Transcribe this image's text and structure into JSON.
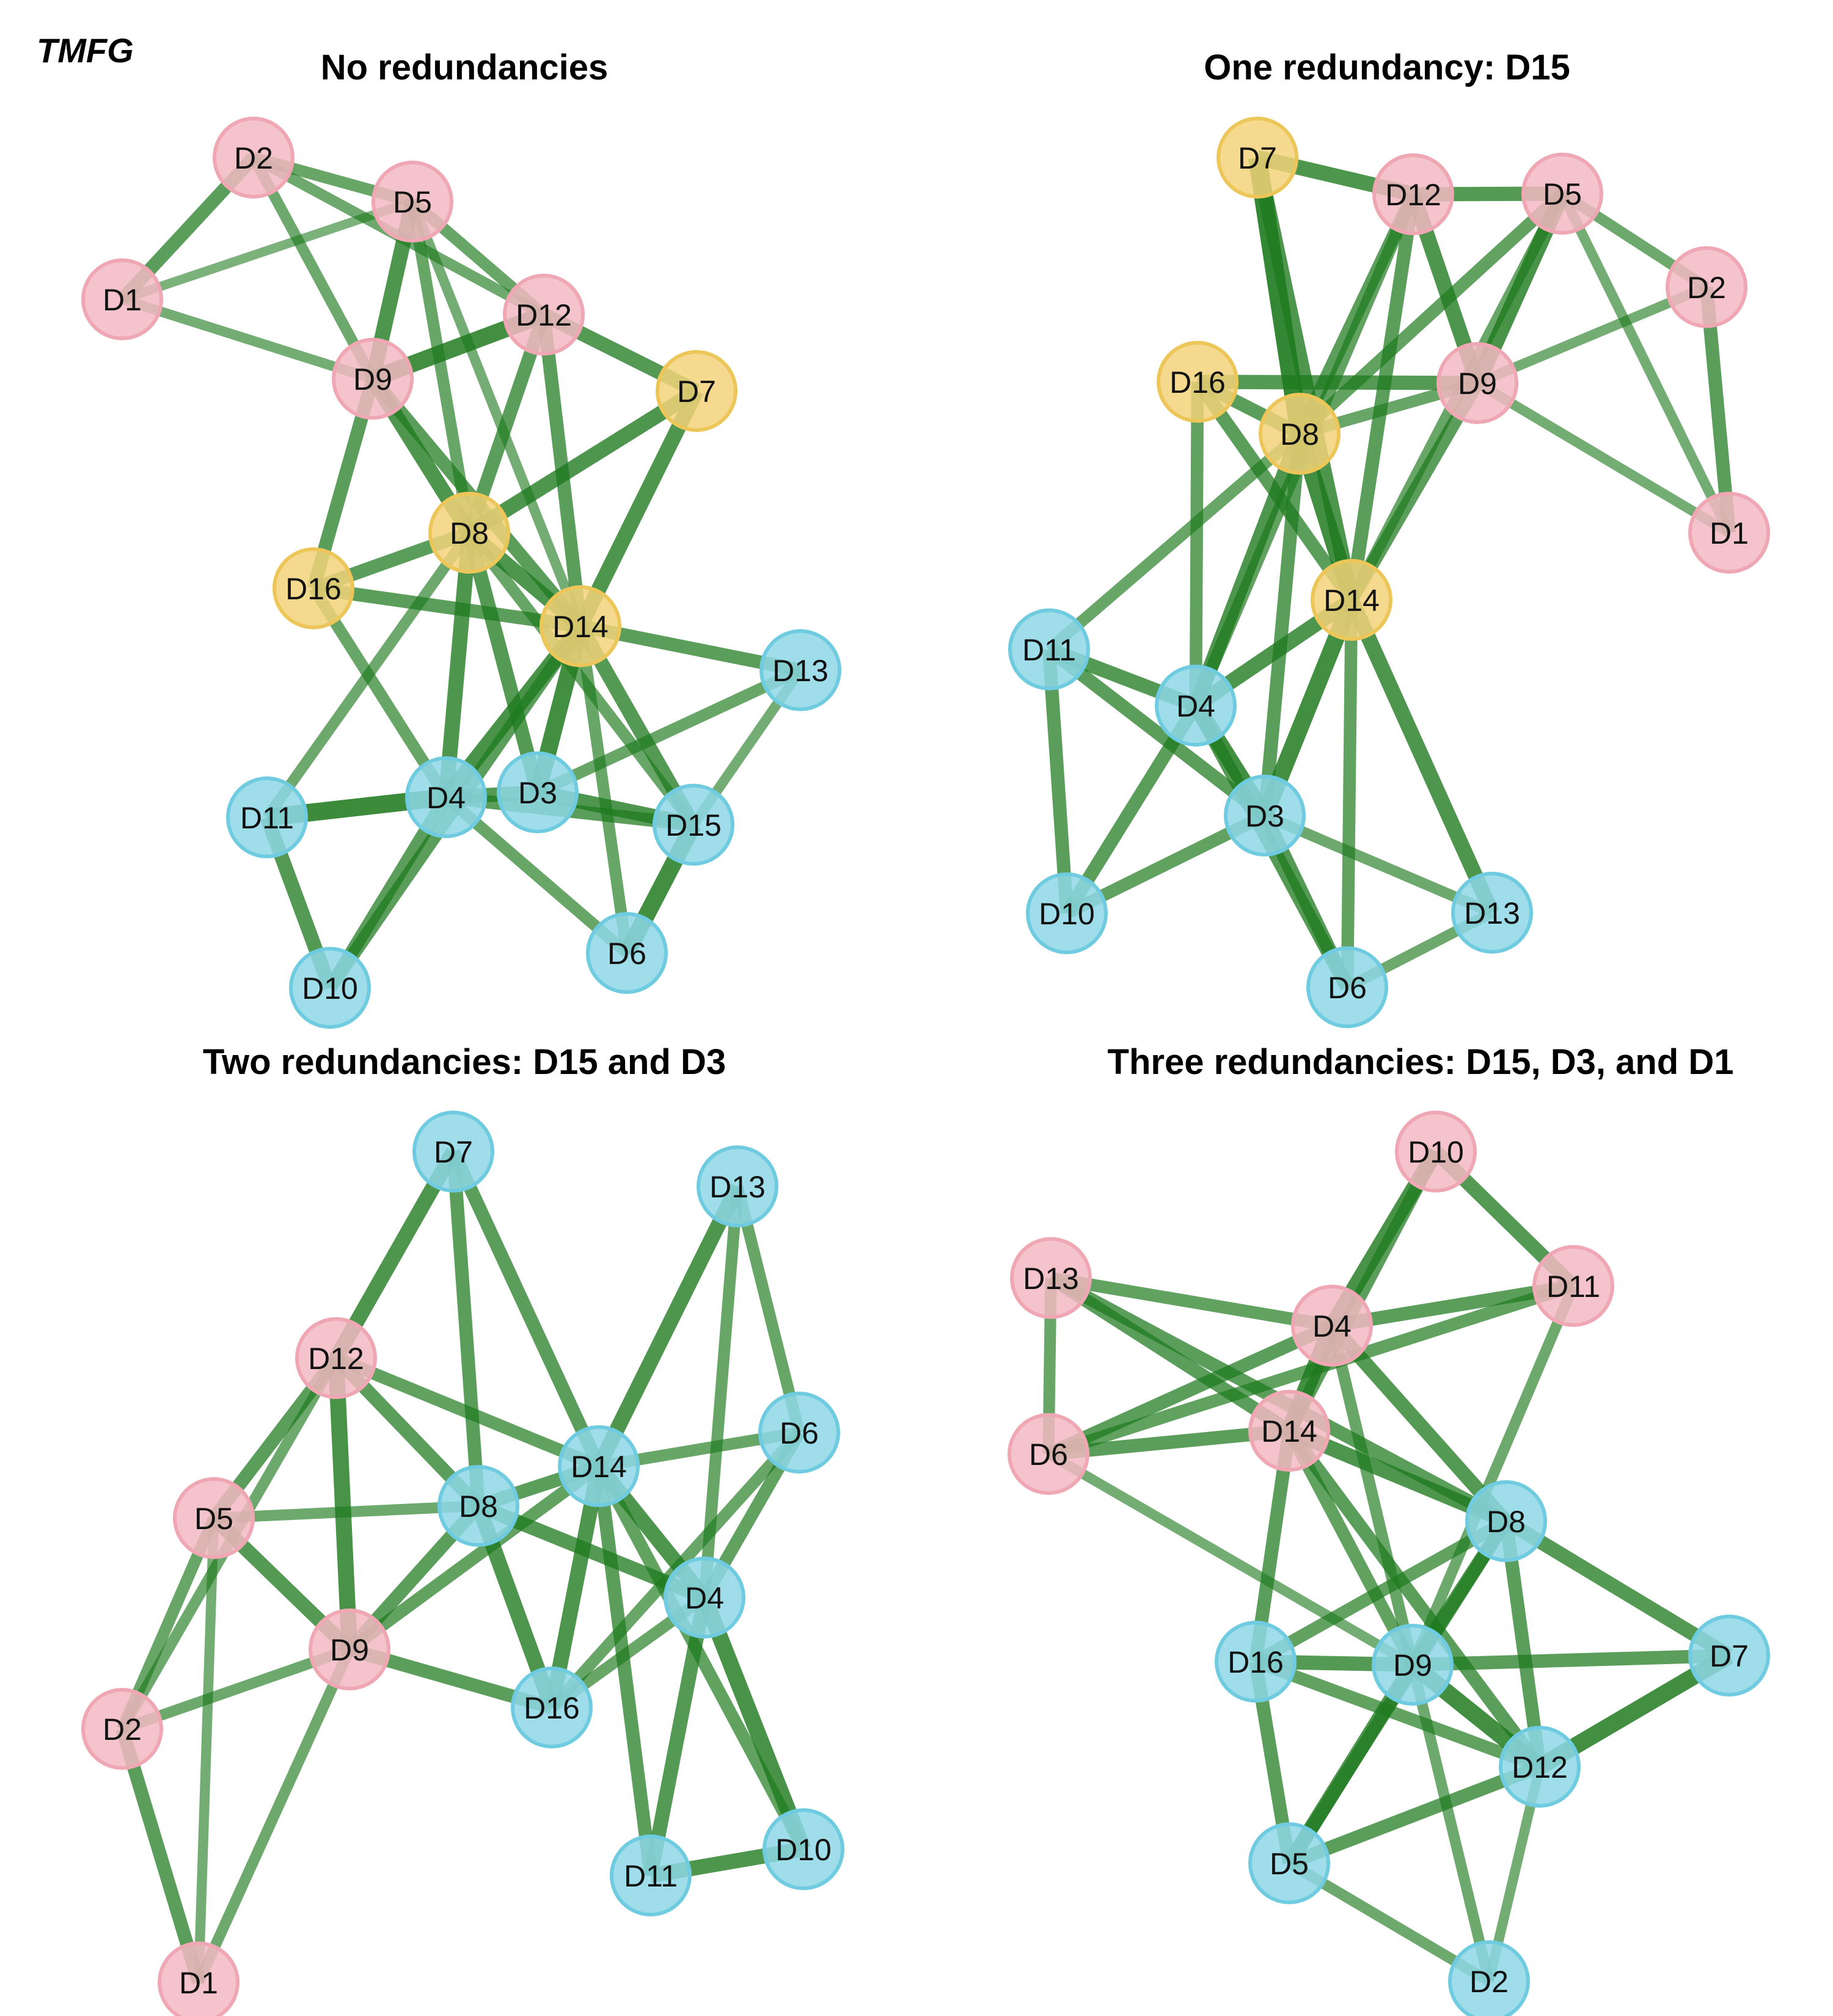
{
  "corner_label": "TMFG",
  "colors": {
    "pink": "#F2B8C2",
    "pink_border": "#EFA7B4",
    "yellow": "#F2D27A",
    "yellow_border": "#EDC65A",
    "cyan": "#8ED7E6",
    "cyan_border": "#6FCCE0",
    "edge": "#1E7A1E"
  },
  "panels": [
    {
      "title": "No redundancies",
      "nodes": [
        {
          "id": "D1",
          "color": "pink"
        },
        {
          "id": "D2",
          "color": "pink"
        },
        {
          "id": "D5",
          "color": "pink"
        },
        {
          "id": "D9",
          "color": "pink"
        },
        {
          "id": "D12",
          "color": "pink"
        },
        {
          "id": "D7",
          "color": "yellow"
        },
        {
          "id": "D8",
          "color": "yellow"
        },
        {
          "id": "D16",
          "color": "yellow"
        },
        {
          "id": "D14",
          "color": "yellow"
        },
        {
          "id": "D13",
          "color": "cyan"
        },
        {
          "id": "D11",
          "color": "cyan"
        },
        {
          "id": "D4",
          "color": "cyan"
        },
        {
          "id": "D3",
          "color": "cyan"
        },
        {
          "id": "D15",
          "color": "cyan"
        },
        {
          "id": "D10",
          "color": "cyan"
        },
        {
          "id": "D6",
          "color": "cyan"
        }
      ],
      "edges": [
        [
          "D2",
          "D1",
          1.0
        ],
        [
          "D2",
          "D5",
          0.8
        ],
        [
          "D2",
          "D12",
          0.7
        ],
        [
          "D2",
          "D9",
          0.7
        ],
        [
          "D1",
          "D5",
          0.5
        ],
        [
          "D1",
          "D9",
          0.6
        ],
        [
          "D5",
          "D12",
          0.8
        ],
        [
          "D5",
          "D9",
          1.2
        ],
        [
          "D5",
          "D8",
          0.8
        ],
        [
          "D5",
          "D14",
          0.6
        ],
        [
          "D9",
          "D12",
          1.4
        ],
        [
          "D9",
          "D16",
          1.0
        ],
        [
          "D9",
          "D8",
          1.2
        ],
        [
          "D9",
          "D14",
          1.0
        ],
        [
          "D12",
          "D7",
          1.1
        ],
        [
          "D12",
          "D8",
          1.0
        ],
        [
          "D12",
          "D14",
          1.0
        ],
        [
          "D7",
          "D8",
          1.2
        ],
        [
          "D7",
          "D14",
          1.2
        ],
        [
          "D8",
          "D16",
          1.0
        ],
        [
          "D8",
          "D14",
          1.2
        ],
        [
          "D8",
          "D4",
          1.2
        ],
        [
          "D8",
          "D3",
          1.1
        ],
        [
          "D8",
          "D11",
          0.7
        ],
        [
          "D8",
          "D15",
          0.8
        ],
        [
          "D16",
          "D14",
          1.0
        ],
        [
          "D16",
          "D4",
          0.8
        ],
        [
          "D14",
          "D13",
          1.0
        ],
        [
          "D14",
          "D4",
          1.3
        ],
        [
          "D14",
          "D3",
          1.4
        ],
        [
          "D14",
          "D15",
          1.1
        ],
        [
          "D14",
          "D6",
          0.8
        ],
        [
          "D14",
          "D10",
          1.0
        ],
        [
          "D11",
          "D4",
          1.5
        ],
        [
          "D11",
          "D10",
          1.1
        ],
        [
          "D4",
          "D3",
          1.1
        ],
        [
          "D4",
          "D10",
          1.0
        ],
        [
          "D4",
          "D6",
          0.8
        ],
        [
          "D3",
          "D13",
          0.8
        ],
        [
          "D3",
          "D15",
          1.2
        ],
        [
          "D15",
          "D13",
          0.6
        ],
        [
          "D15",
          "D6",
          1.4
        ],
        [
          "D4",
          "D15",
          1.0
        ]
      ]
    },
    {
      "title": "One redundancy: D15",
      "nodes": [
        {
          "id": "D7",
          "color": "yellow"
        },
        {
          "id": "D12",
          "color": "pink"
        },
        {
          "id": "D5",
          "color": "pink"
        },
        {
          "id": "D2",
          "color": "pink"
        },
        {
          "id": "D16",
          "color": "yellow"
        },
        {
          "id": "D9",
          "color": "pink"
        },
        {
          "id": "D8",
          "color": "yellow"
        },
        {
          "id": "D1",
          "color": "pink"
        },
        {
          "id": "D14",
          "color": "yellow"
        },
        {
          "id": "D11",
          "color": "cyan"
        },
        {
          "id": "D4",
          "color": "cyan"
        },
        {
          "id": "D3",
          "color": "cyan"
        },
        {
          "id": "D10",
          "color": "cyan"
        },
        {
          "id": "D13",
          "color": "cyan"
        },
        {
          "id": "D6",
          "color": "cyan"
        }
      ],
      "edges": [
        [
          "D7",
          "D12",
          1.2
        ],
        [
          "D7",
          "D8",
          1.6
        ],
        [
          "D7",
          "D14",
          1.2
        ],
        [
          "D12",
          "D5",
          1.1
        ],
        [
          "D12",
          "D9",
          1.2
        ],
        [
          "D12",
          "D8",
          1.0
        ],
        [
          "D12",
          "D14",
          1.0
        ],
        [
          "D12",
          "D4",
          0.9
        ],
        [
          "D5",
          "D9",
          1.3
        ],
        [
          "D5",
          "D2",
          0.7
        ],
        [
          "D5",
          "D1",
          0.6
        ],
        [
          "D5",
          "D8",
          0.9
        ],
        [
          "D5",
          "D14",
          0.8
        ],
        [
          "D2",
          "D9",
          0.6
        ],
        [
          "D2",
          "D1",
          1.0
        ],
        [
          "D9",
          "D1",
          0.6
        ],
        [
          "D9",
          "D16",
          1.1
        ],
        [
          "D9",
          "D8",
          0.8
        ],
        [
          "D9",
          "D14",
          1.0
        ],
        [
          "D16",
          "D8",
          1.0
        ],
        [
          "D16",
          "D4",
          0.9
        ],
        [
          "D16",
          "D14",
          1.0
        ],
        [
          "D8",
          "D14",
          1.4
        ],
        [
          "D8",
          "D11",
          0.8
        ],
        [
          "D8",
          "D4",
          1.2
        ],
        [
          "D8",
          "D3",
          1.0
        ],
        [
          "D14",
          "D4",
          1.2
        ],
        [
          "D14",
          "D3",
          1.4
        ],
        [
          "D14",
          "D13",
          1.2
        ],
        [
          "D14",
          "D6",
          0.9
        ],
        [
          "D11",
          "D4",
          1.1
        ],
        [
          "D11",
          "D3",
          1.0
        ],
        [
          "D11",
          "D10",
          1.0
        ],
        [
          "D4",
          "D3",
          1.4
        ],
        [
          "D4",
          "D10",
          1.0
        ],
        [
          "D4",
          "D6",
          1.1
        ],
        [
          "D3",
          "D10",
          0.9
        ],
        [
          "D3",
          "D13",
          0.7
        ],
        [
          "D3",
          "D6",
          1.1
        ],
        [
          "D6",
          "D13",
          0.7
        ]
      ]
    },
    {
      "title": "Two redundancies: D15 and D3",
      "nodes": [
        {
          "id": "D7",
          "color": "cyan"
        },
        {
          "id": "D13",
          "color": "cyan"
        },
        {
          "id": "D12",
          "color": "pink"
        },
        {
          "id": "D6",
          "color": "cyan"
        },
        {
          "id": "D14",
          "color": "cyan"
        },
        {
          "id": "D5",
          "color": "pink"
        },
        {
          "id": "D8",
          "color": "cyan"
        },
        {
          "id": "D4",
          "color": "cyan"
        },
        {
          "id": "D9",
          "color": "pink"
        },
        {
          "id": "D2",
          "color": "pink"
        },
        {
          "id": "D16",
          "color": "cyan"
        },
        {
          "id": "D10",
          "color": "cyan"
        },
        {
          "id": "D11",
          "color": "cyan"
        },
        {
          "id": "D1",
          "color": "pink"
        }
      ],
      "edges": [
        [
          "D7",
          "D12",
          1.2
        ],
        [
          "D7",
          "D8",
          1.0
        ],
        [
          "D7",
          "D14",
          1.0
        ],
        [
          "D13",
          "D14",
          1.2
        ],
        [
          "D13",
          "D4",
          0.8
        ],
        [
          "D13",
          "D6",
          0.8
        ],
        [
          "D12",
          "D5",
          1.0
        ],
        [
          "D12",
          "D9",
          1.3
        ],
        [
          "D12",
          "D8",
          1.0
        ],
        [
          "D12",
          "D14",
          0.9
        ],
        [
          "D12",
          "D2",
          0.7
        ],
        [
          "D6",
          "D14",
          0.8
        ],
        [
          "D6",
          "D4",
          0.9
        ],
        [
          "D6",
          "D16",
          0.8
        ],
        [
          "D14",
          "D8",
          1.0
        ],
        [
          "D14",
          "D9",
          0.9
        ],
        [
          "D14",
          "D4",
          1.2
        ],
        [
          "D14",
          "D16",
          1.2
        ],
        [
          "D14",
          "D11",
          1.0
        ],
        [
          "D5",
          "D8",
          0.7
        ],
        [
          "D5",
          "D9",
          1.1
        ],
        [
          "D5",
          "D2",
          0.8
        ],
        [
          "D5",
          "D1",
          0.6
        ],
        [
          "D8",
          "D4",
          1.1
        ],
        [
          "D8",
          "D9",
          1.0
        ],
        [
          "D8",
          "D16",
          1.2
        ],
        [
          "D4",
          "D10",
          1.3
        ],
        [
          "D4",
          "D11",
          1.1
        ],
        [
          "D4",
          "D16",
          0.8
        ],
        [
          "D9",
          "D2",
          0.7
        ],
        [
          "D9",
          "D16",
          1.0
        ],
        [
          "D9",
          "D1",
          0.7
        ],
        [
          "D2",
          "D1",
          1.0
        ],
        [
          "D11",
          "D10",
          1.2
        ],
        [
          "D14",
          "D10",
          0.9
        ]
      ]
    },
    {
      "title": "Three redundancies: D15, D3, and D1",
      "nodes": [
        {
          "id": "D10",
          "color": "pink"
        },
        {
          "id": "D13",
          "color": "pink"
        },
        {
          "id": "D11",
          "color": "pink"
        },
        {
          "id": "D4",
          "color": "pink"
        },
        {
          "id": "D6",
          "color": "pink"
        },
        {
          "id": "D14",
          "color": "pink"
        },
        {
          "id": "D8",
          "color": "cyan"
        },
        {
          "id": "D7",
          "color": "cyan"
        },
        {
          "id": "D16",
          "color": "cyan"
        },
        {
          "id": "D9",
          "color": "cyan"
        },
        {
          "id": "D12",
          "color": "cyan"
        },
        {
          "id": "D5",
          "color": "cyan"
        },
        {
          "id": "D2",
          "color": "cyan"
        }
      ],
      "edges": [
        [
          "D10",
          "D4",
          1.3
        ],
        [
          "D10",
          "D11",
          1.1
        ],
        [
          "D10",
          "D14",
          1.0
        ],
        [
          "D13",
          "D4",
          0.9
        ],
        [
          "D13",
          "D6",
          0.8
        ],
        [
          "D13",
          "D14",
          1.0
        ],
        [
          "D13",
          "D8",
          1.0
        ],
        [
          "D11",
          "D4",
          1.0
        ],
        [
          "D11",
          "D6",
          0.9
        ],
        [
          "D11",
          "D9",
          0.7
        ],
        [
          "D4",
          "D6",
          1.0
        ],
        [
          "D4",
          "D14",
          1.4
        ],
        [
          "D4",
          "D8",
          1.1
        ],
        [
          "D4",
          "D9",
          0.8
        ],
        [
          "D6",
          "D14",
          1.0
        ],
        [
          "D6",
          "D9",
          0.6
        ],
        [
          "D14",
          "D8",
          1.2
        ],
        [
          "D14",
          "D16",
          1.0
        ],
        [
          "D14",
          "D9",
          0.9
        ],
        [
          "D14",
          "D12",
          1.0
        ],
        [
          "D8",
          "D7",
          1.1
        ],
        [
          "D8",
          "D16",
          0.9
        ],
        [
          "D8",
          "D9",
          1.1
        ],
        [
          "D8",
          "D12",
          1.0
        ],
        [
          "D8",
          "D5",
          1.0
        ],
        [
          "D16",
          "D9",
          1.1
        ],
        [
          "D16",
          "D12",
          0.9
        ],
        [
          "D16",
          "D5",
          1.0
        ],
        [
          "D9",
          "D7",
          1.0
        ],
        [
          "D9",
          "D12",
          1.4
        ],
        [
          "D9",
          "D5",
          1.2
        ],
        [
          "D9",
          "D2",
          0.7
        ],
        [
          "D12",
          "D7",
          1.4
        ],
        [
          "D12",
          "D5",
          1.0
        ],
        [
          "D12",
          "D2",
          0.6
        ],
        [
          "D5",
          "D2",
          0.7
        ]
      ]
    }
  ]
}
